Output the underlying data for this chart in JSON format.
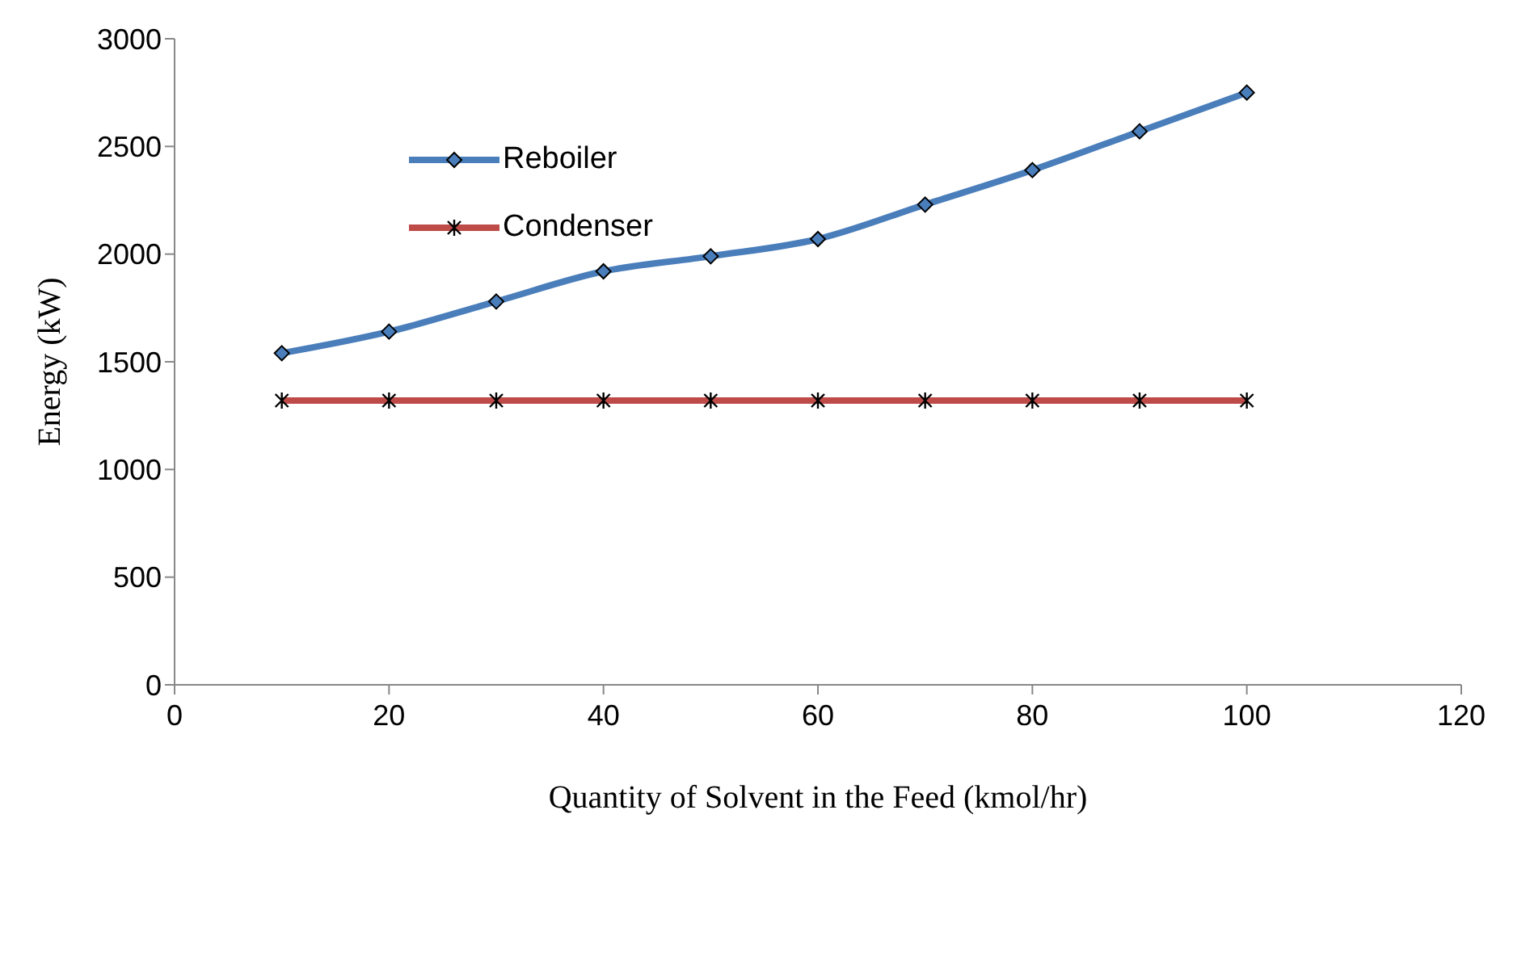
{
  "chart_data": {
    "type": "line",
    "xlabel": "Quantity of Solvent in the Feed (kmol/hr)",
    "ylabel": "Energy (kW)",
    "x": [
      10,
      20,
      30,
      40,
      50,
      60,
      70,
      80,
      90,
      100
    ],
    "series": [
      {
        "name": "Reboiler",
        "color": "#4a7ebb",
        "marker": "diamond",
        "values": [
          1540,
          1640,
          1780,
          1920,
          1990,
          2070,
          2230,
          2390,
          2570,
          2750
        ]
      },
      {
        "name": "Condenser",
        "color": "#be4b48",
        "marker": "cross",
        "values": [
          1320,
          1320,
          1320,
          1320,
          1320,
          1320,
          1320,
          1320,
          1320,
          1320
        ]
      }
    ],
    "xlim": [
      0,
      120
    ],
    "xticks": [
      0,
      20,
      40,
      60,
      80,
      100,
      120
    ],
    "ylim": [
      0,
      3000
    ],
    "yticks": [
      0,
      500,
      1000,
      1500,
      2000,
      2500,
      3000
    ],
    "grid": false,
    "legend": "top left",
    "line_style": "solid"
  }
}
